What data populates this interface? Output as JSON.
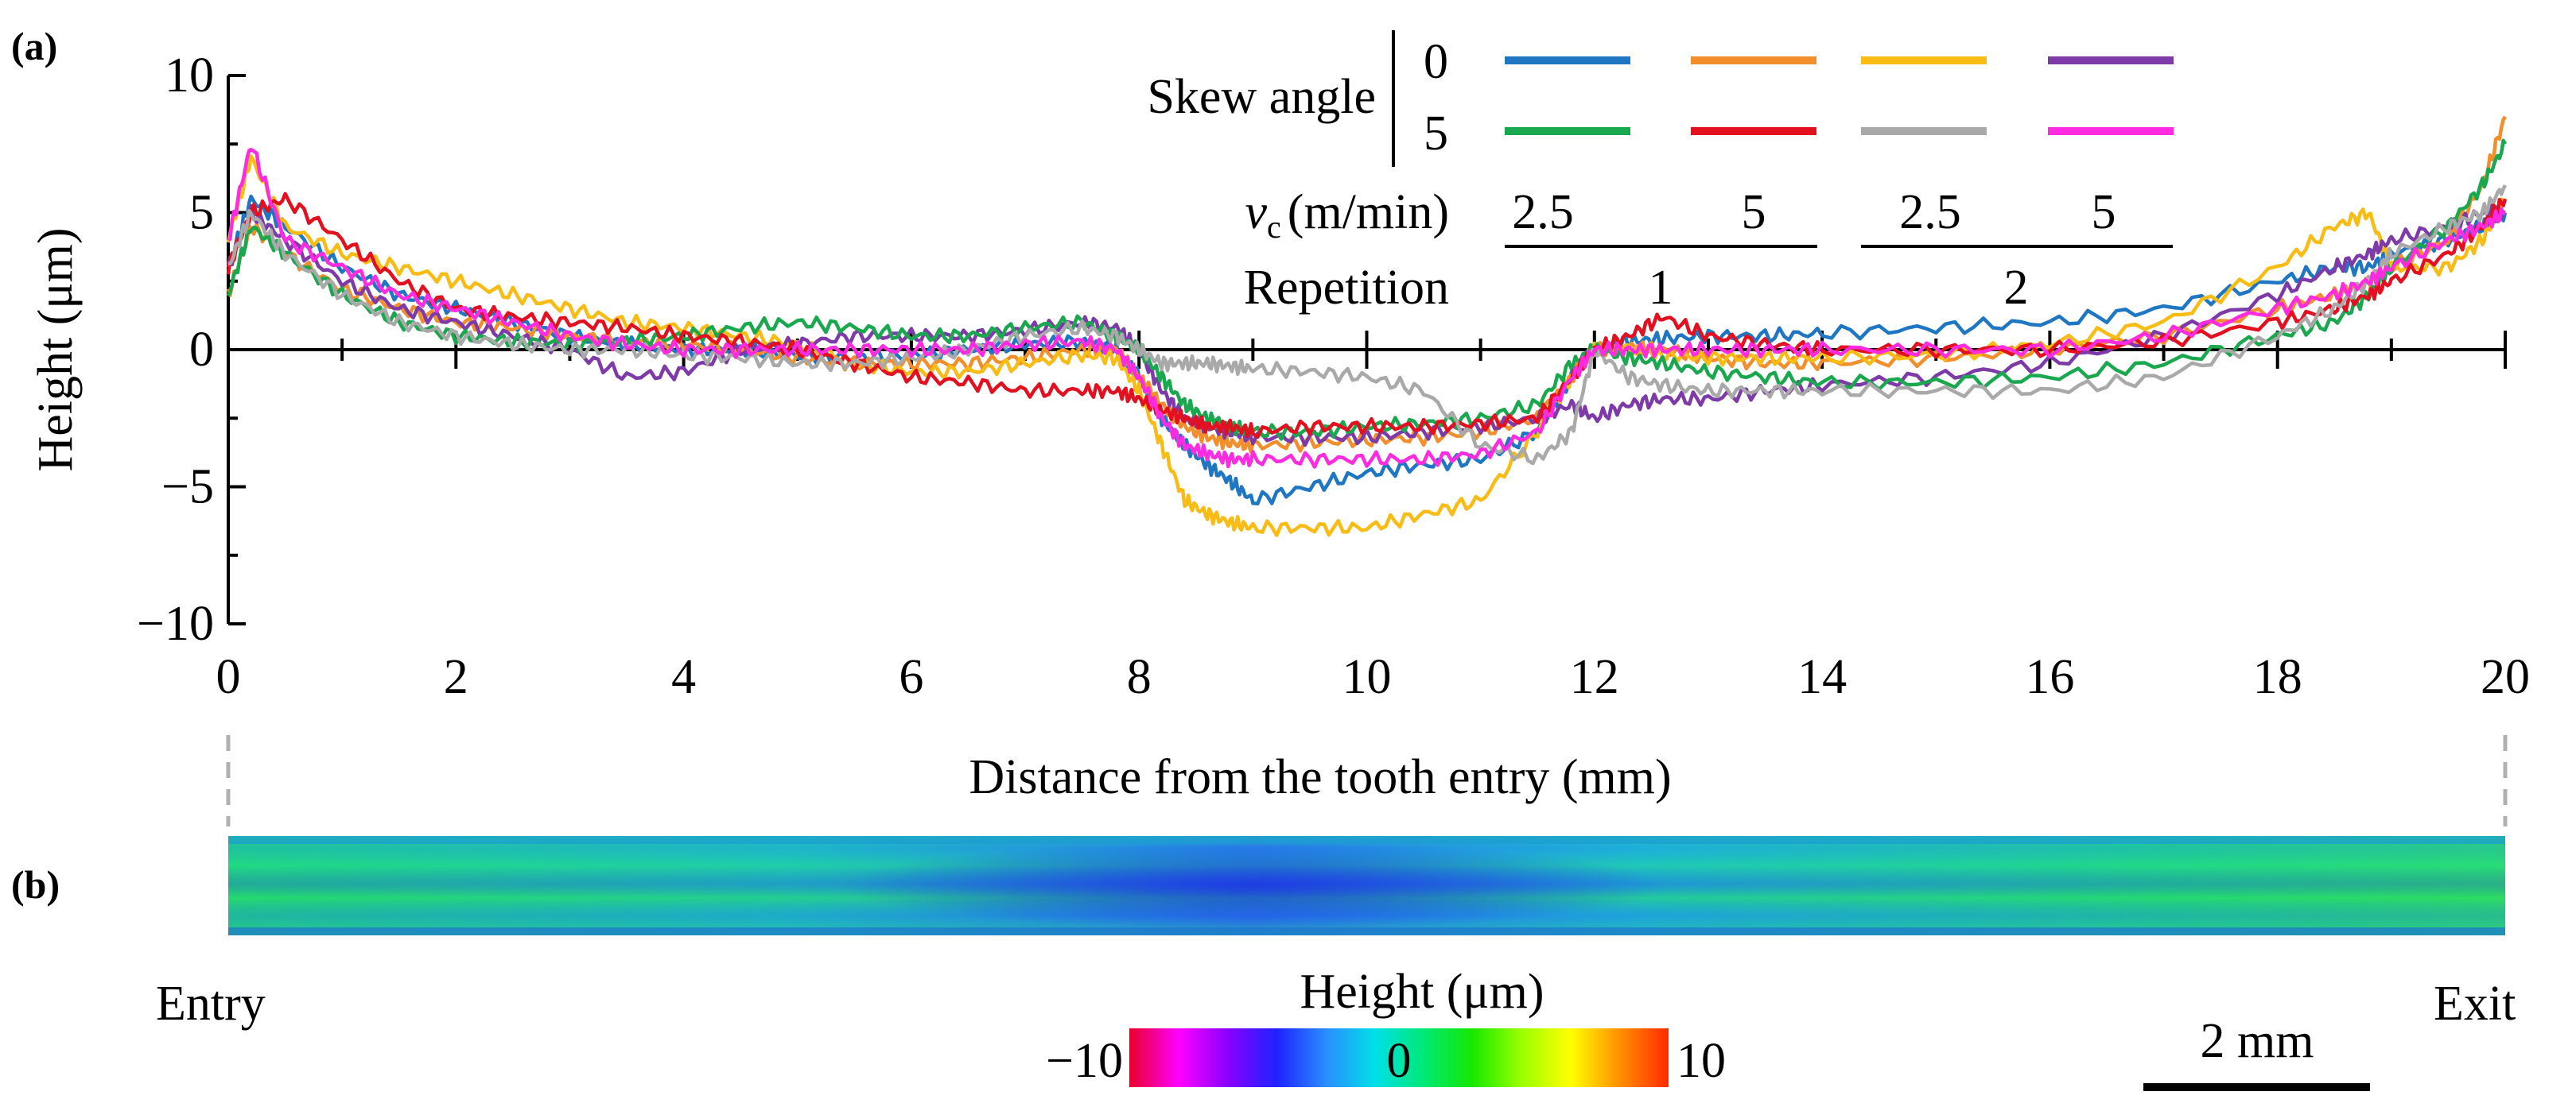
{
  "panel_a_label": "(a)",
  "panel_b_label": "(b)",
  "chart_data": {
    "type": "line",
    "ylabel": "Height (μm)",
    "xlabel": "Distance from the tooth entry (mm)",
    "xlim": [
      0,
      20
    ],
    "ylim": [
      -10,
      10
    ],
    "x_ticks": [
      0,
      2,
      4,
      6,
      8,
      10,
      12,
      14,
      16,
      18,
      20
    ],
    "x_tick_labels": [
      "0",
      "2",
      "4",
      "6",
      "8",
      "10",
      "12",
      "14",
      "16",
      "18",
      "20"
    ],
    "y_ticks": [
      -10,
      -5,
      0,
      5,
      10
    ],
    "y_tick_labels": [
      "−10",
      "−5",
      "0",
      "5",
      "10"
    ],
    "legend": {
      "skew_label": "Skew angle",
      "skew_values": [
        "0",
        "5"
      ],
      "vc_symbol": "v",
      "vc_subscript": "c",
      "vc_unit": "(m/min)",
      "vc_values": [
        "2.5",
        "5",
        "2.5",
        "5"
      ],
      "repetition_label": "Repetition",
      "repetition_values": [
        "1",
        "2"
      ]
    },
    "x": [
      0,
      0.2,
      0.5,
      1,
      1.5,
      2,
      2.5,
      3,
      3.5,
      4,
      4.5,
      5,
      5.5,
      6,
      6.5,
      7,
      7.5,
      7.8,
      8,
      8.2,
      8.4,
      8.6,
      8.8,
      9,
      9.5,
      10,
      10.5,
      11,
      11.5,
      11.8,
      12,
      12.3,
      12.6,
      13,
      13.5,
      14,
      15,
      16,
      17,
      18,
      18.5,
      18.8,
      19,
      19.5,
      19.8,
      20
    ],
    "series": [
      {
        "name": "Skew 0, vc 2.5, Rep 1",
        "color": "#1f77c4",
        "values": [
          3,
          5.5,
          4.5,
          3,
          2,
          1.5,
          1,
          0.5,
          0.2,
          0,
          0,
          -0.2,
          -0.3,
          -0.2,
          0,
          0.2,
          0.3,
          0,
          -1,
          -2.5,
          -3.5,
          -4.2,
          -4.8,
          -5.5,
          -5,
          -4.5,
          -4.2,
          -4,
          -3,
          -1,
          0,
          0.3,
          0.4,
          0.5,
          0.5,
          0.6,
          0.8,
          1,
          1.5,
          2.5,
          3,
          3,
          3.5,
          4,
          4.5,
          5
        ]
      },
      {
        "name": "Skew 0, vc 5, Rep 1",
        "color": "#f28e2b",
        "values": [
          2,
          4.5,
          3.5,
          2.2,
          1.5,
          1,
          0.8,
          0.5,
          0.3,
          0.2,
          0,
          -0.3,
          -0.5,
          -0.5,
          -0.5,
          -0.3,
          0,
          0,
          -1,
          -2,
          -2.8,
          -3.2,
          -3.4,
          -3.5,
          -3.4,
          -3.3,
          -3.2,
          -3,
          -2.5,
          -1,
          0,
          0.1,
          0,
          -0.3,
          -0.5,
          -0.5,
          -0.3,
          0,
          0.5,
          1.5,
          2,
          2.5,
          3,
          4,
          6,
          8.5
        ]
      },
      {
        "name": "Skew 0, vc 2.5, Rep 2",
        "color": "#f9bc15",
        "values": [
          4,
          7,
          4.5,
          3.5,
          3,
          2.5,
          2,
          1.5,
          1,
          0.8,
          0.5,
          0.2,
          -0.5,
          -0.8,
          -0.8,
          -0.5,
          -0.2,
          -0.3,
          -1.5,
          -3.5,
          -5.5,
          -6,
          -6.3,
          -6.5,
          -6.5,
          -6.5,
          -6,
          -5.5,
          -3,
          -1,
          0,
          0,
          -0.2,
          -0.3,
          -0.3,
          -0.3,
          -0.2,
          0.2,
          1,
          3,
          4.5,
          5,
          3,
          3,
          4,
          5.5
        ]
      },
      {
        "name": "Skew 0, vc 5, Rep 2",
        "color": "#7e3aa8",
        "values": [
          3,
          5,
          4,
          2.5,
          1.5,
          1,
          0.5,
          0,
          -1,
          -0.8,
          0,
          0.2,
          0.5,
          0.5,
          0.5,
          0.7,
          1,
          0.8,
          0,
          -1.5,
          -2.5,
          -2.8,
          -3,
          -3.2,
          -3.2,
          -3.2,
          -3,
          -2.8,
          -2.5,
          -2,
          -2.5,
          -2,
          -1.8,
          -1.8,
          -1.5,
          -1.3,
          -1,
          -0.5,
          0.5,
          2,
          3,
          3.5,
          4,
          4.5,
          5,
          5
        ]
      },
      {
        "name": "Skew 5, vc 2.5, Rep 1",
        "color": "#1aa84f",
        "values": [
          2,
          4.5,
          3.5,
          2,
          1,
          0.5,
          0.3,
          0.2,
          0.3,
          0.5,
          0.8,
          1,
          0.8,
          0.5,
          0.5,
          0.8,
          1,
          0.5,
          0,
          -1,
          -2,
          -2.5,
          -2.8,
          -3,
          -3,
          -2.8,
          -2.7,
          -2.5,
          -2,
          -0.5,
          0,
          -0.3,
          -0.5,
          -0.8,
          -1,
          -1.2,
          -1.2,
          -1,
          -0.5,
          0.5,
          1,
          2,
          3,
          4.5,
          6,
          7.5
        ]
      },
      {
        "name": "Skew 5, vc 5, Rep 1",
        "color": "#e3101f",
        "values": [
          3,
          5,
          5.5,
          4,
          2.5,
          1.5,
          1.2,
          1,
          0.8,
          0.5,
          0.3,
          0,
          -0.5,
          -1,
          -1.2,
          -1.5,
          -1.5,
          -1.5,
          -1.8,
          -2.2,
          -2.5,
          -2.8,
          -2.8,
          -3,
          -2.8,
          -2.8,
          -2.8,
          -2.7,
          -2.5,
          -1,
          0,
          0.5,
          1.2,
          0.5,
          0.2,
          0,
          0,
          0,
          0.3,
          1,
          1.5,
          2,
          2.5,
          3.5,
          4.5,
          5.5
        ]
      },
      {
        "name": "Skew 5, vc 2.5, Rep 2",
        "color": "#a9a9a9",
        "values": [
          3,
          5,
          3.5,
          2,
          1,
          0.5,
          0.2,
          0,
          0,
          -0.2,
          -0.3,
          -0.5,
          -0.5,
          -0.3,
          0,
          0.5,
          0.8,
          0.5,
          0,
          -0.5,
          -0.5,
          -0.5,
          -0.6,
          -0.7,
          -0.8,
          -1,
          -1.5,
          -3.5,
          -4,
          -3,
          0,
          -1,
          -1.3,
          -1.5,
          -1.5,
          -1.5,
          -1.5,
          -1.5,
          -1,
          0.5,
          1.5,
          2.5,
          3.5,
          4.5,
          5,
          6
        ]
      },
      {
        "name": "Skew 5, vc 5, Rep 2",
        "color": "#ff2be1",
        "values": [
          4,
          7.5,
          4,
          3,
          2,
          1.5,
          1,
          0.5,
          0.2,
          0,
          0,
          0,
          0,
          0,
          0,
          0.2,
          0.3,
          0,
          -1,
          -2.5,
          -3.5,
          -3.8,
          -4,
          -4,
          -4,
          -4,
          -4,
          -3.8,
          -3,
          -1,
          0,
          0,
          0,
          0,
          0,
          0,
          0,
          0,
          0.5,
          1.5,
          2,
          2.5,
          3,
          4,
          4.5,
          5
        ]
      }
    ]
  },
  "profile_image": {
    "entry_label": "Entry",
    "exit_label": "Exit",
    "colorbar_title": "Height (μm)",
    "colorbar_min_label": "−10",
    "colorbar_mid_label": "0",
    "colorbar_max_label": "10",
    "colorbar_colors": [
      "#e8002a",
      "#ff00ff",
      "#8a00ff",
      "#1e22ff",
      "#2a8cff",
      "#00e0e8",
      "#00e878",
      "#16e800",
      "#9aff00",
      "#ffff00",
      "#ff9000",
      "#ff2a00"
    ],
    "scale_bar_label": "2 mm",
    "dip_position_fraction": 0.45
  }
}
